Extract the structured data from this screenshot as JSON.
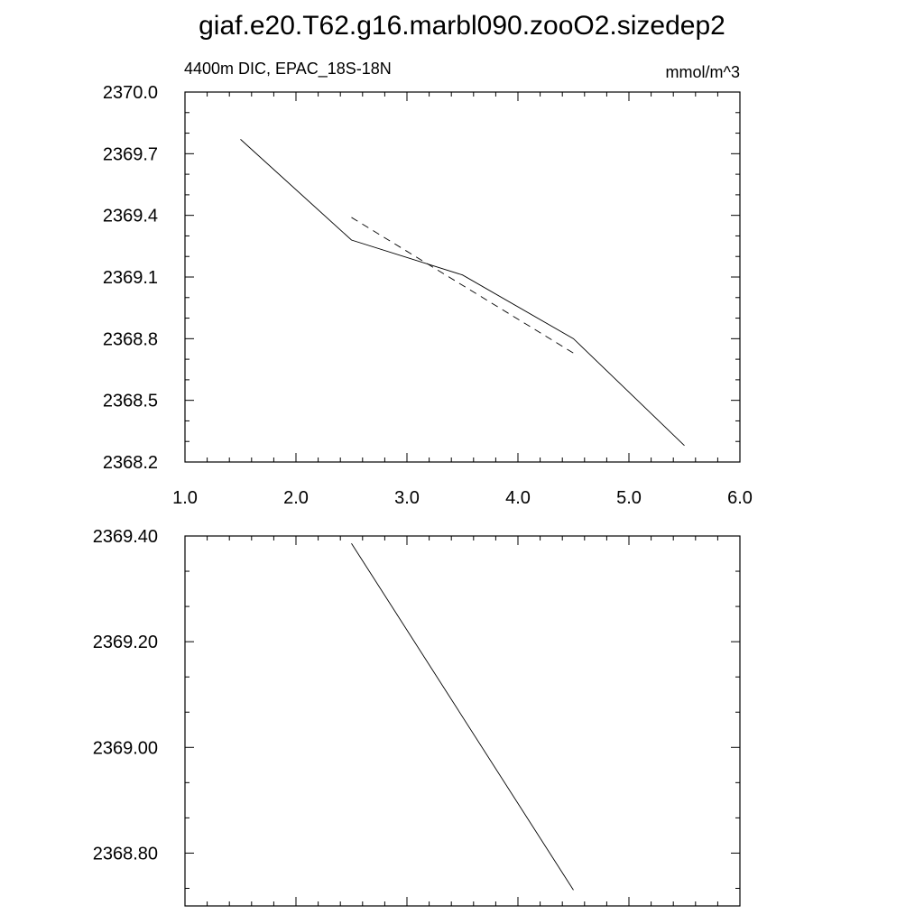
{
  "figure": {
    "title": "giaf.e20.T62.g16.marbl090.zooO2.sizedep2"
  },
  "chart_data": [
    {
      "type": "line",
      "left_string": "4400m DIC, EPAC_18S-18N",
      "right_string": "mmol/m^3",
      "xlim": [
        1.0,
        6.0
      ],
      "ylim": [
        2368.2,
        2370.0
      ],
      "xticks": [
        1.0,
        2.0,
        3.0,
        4.0,
        5.0,
        6.0
      ],
      "xtick_labels": [
        "1.0",
        "2.0",
        "3.0",
        "4.0",
        "5.0",
        "6.0"
      ],
      "yticks": [
        2368.2,
        2368.5,
        2368.8,
        2369.1,
        2369.4,
        2369.7,
        2370.0
      ],
      "ytick_labels": [
        "2368.2",
        "2368.5",
        "2368.8",
        "2369.1",
        "2369.4",
        "2369.7",
        "2370.0"
      ],
      "grid": false,
      "series": [
        {
          "style": "solid",
          "x": [
            1.5,
            2.5,
            3.5,
            4.5,
            5.5
          ],
          "y": [
            2369.77,
            2369.28,
            2369.11,
            2368.8,
            2368.28
          ]
        },
        {
          "style": "dashed",
          "x": [
            2.5,
            3.5,
            4.5
          ],
          "y": [
            2369.39,
            2369.06,
            2368.73
          ]
        }
      ]
    },
    {
      "type": "line",
      "xlim": [
        1.0,
        6.0
      ],
      "ylim": [
        2368.7,
        2369.4
      ],
      "xticks": [
        1.0,
        2.0,
        3.0,
        4.0,
        5.0,
        6.0
      ],
      "yticks": [
        2368.8,
        2369.0,
        2369.2,
        2369.4
      ],
      "ytick_labels": [
        "2368.80",
        "2369.00",
        "2369.20",
        "2369.40"
      ],
      "grid": false,
      "series": [
        {
          "style": "solid",
          "x": [
            2.5,
            4.5
          ],
          "y": [
            2369.386,
            2368.73
          ]
        }
      ]
    }
  ]
}
